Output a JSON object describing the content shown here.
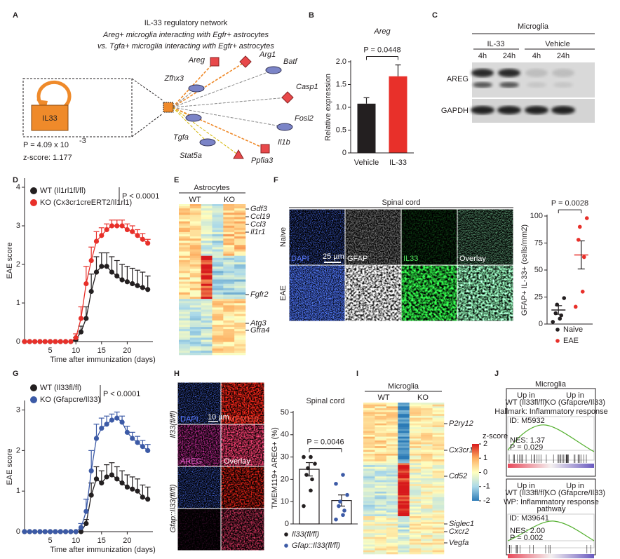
{
  "panel_labels": [
    "A",
    "B",
    "C",
    "D",
    "E",
    "F",
    "G",
    "H",
    "I",
    "J"
  ],
  "panel_a": {
    "title_lines": [
      "IL-33 regulatory network",
      "Areg+ microglia interacting with Egfr+ astrocytes",
      "vs. Tgfa+ microglia interacting with Egfr+ astrocytes"
    ],
    "hub": "IL33",
    "p_text": "P = 4.09 x 10",
    "p_exp": "-3",
    "z_score": "z-score: 1.177",
    "genes": [
      "Areg",
      "Arg1",
      "Batf",
      "Zfhx3",
      "Casp1",
      "Fosl2",
      "Tgfa",
      "Stat5a",
      "Il1b",
      "Ppfia3"
    ]
  },
  "panel_c": {
    "title": "Microglia",
    "groups": [
      "IL-33",
      "Vehicle"
    ],
    "timepoints": [
      "4h",
      "24h",
      "4h",
      "24h"
    ],
    "blots": [
      "AREG",
      "GAPDH"
    ]
  },
  "panel_e": {
    "title": "Astrocytes",
    "groups": [
      "WT",
      "KO"
    ],
    "genes": [
      "Gdf3",
      "Ccl19",
      "Ccl3",
      "Il1r1",
      "Fgfr2",
      "Atg3",
      "Gfra4"
    ]
  },
  "panel_f_images": {
    "title": "Spinal cord",
    "rows": [
      "Naive",
      "EAE"
    ],
    "channels": [
      "DAPI",
      "GFAP",
      "IL33",
      "Overlay"
    ],
    "scale_bar": "25 µm"
  },
  "panel_h_images": {
    "rows": [
      "Il33(fl/fl)",
      "Gfap::Il33(fl/fl)"
    ],
    "channels": [
      "DAPI",
      "TMEM119",
      "AREG",
      "Overlay"
    ],
    "scale_bar": "10 µm"
  },
  "panel_i": {
    "title": "Microglia",
    "groups": [
      "WT",
      "KO"
    ],
    "genes": [
      "P2ry12",
      "Cx3cr1",
      "Cd52",
      "Siglec1",
      "Cxcr2",
      "Vegfa"
    ],
    "colorbar_label": "z-score",
    "colorbar_ticks": [
      2,
      1,
      0,
      -1,
      -2
    ]
  },
  "panel_j": {
    "title": "Microglia",
    "up_in": "Up in",
    "groups": [
      "WT (Il33fl/fl)",
      "KO (Gfapcre/Il33)"
    ],
    "gene_sets": [
      {
        "name_lines": [
          "Hallmark: Inflammatory response"
        ],
        "id": "ID: M5932",
        "nes": "NES: 1.37",
        "p": "P = 0.029"
      },
      {
        "name_lines": [
          "WP: Inflammatory response",
          "pathway"
        ],
        "id": "ID: M39641",
        "nes": "NES: 2.00",
        "p": "P = 0.002"
      }
    ]
  },
  "chart_data": [
    {
      "type": "bar",
      "title": "Areg",
      "ylabel": "Relative expression",
      "categories": [
        "Vehicle",
        "IL-33"
      ],
      "values": [
        1.08,
        1.68
      ],
      "errors": [
        0.13,
        0.25
      ],
      "colors": [
        "#231f20",
        "#e8302a"
      ],
      "ylim": [
        0,
        2
      ],
      "yticks": [
        0,
        0.5,
        {
          "value": 1,
          "label": "1.0"
        },
        1.5,
        {
          "value": 2,
          "label": "2.0"
        }
      ],
      "annotation": "P = 0.0448"
    },
    {
      "type": "line",
      "xlabel": "Time after immunization (days)",
      "ylabel": "EAE score",
      "x": [
        0,
        1,
        2,
        3,
        4,
        5,
        6,
        7,
        8,
        9,
        10,
        11,
        12,
        13,
        14,
        15,
        16,
        17,
        18,
        19,
        20,
        21,
        22,
        23,
        24
      ],
      "xlim": [
        0,
        25
      ],
      "xticks": [
        5,
        10,
        15,
        20
      ],
      "ylim": [
        0,
        4.2
      ],
      "yticks": [
        0,
        1,
        2,
        3,
        4
      ],
      "annotation": "P < 0.0001",
      "series": [
        {
          "name": "WT (Il1rl1fl/fl)",
          "color": "#231f20",
          "values": [
            0,
            0,
            0,
            0,
            0,
            0,
            0,
            0,
            0,
            0,
            0.05,
            0.25,
            0.6,
            1.3,
            1.8,
            1.95,
            1.95,
            1.8,
            1.7,
            1.6,
            1.55,
            1.5,
            1.45,
            1.4,
            1.35
          ],
          "errors": [
            0,
            0,
            0,
            0,
            0,
            0,
            0,
            0,
            0,
            0,
            0.05,
            0.15,
            0.3,
            0.45,
            0.4,
            0.35,
            0.35,
            0.4,
            0.4,
            0.4,
            0.4,
            0.4,
            0.4,
            0.4,
            0.35
          ]
        },
        {
          "name": "KO (Cx3cr1creERT2/Il1rl1)",
          "color": "#e8302a",
          "values": [
            0,
            0,
            0,
            0,
            0,
            0,
            0,
            0,
            0,
            0,
            0.1,
            0.6,
            1.5,
            2.1,
            2.6,
            2.75,
            2.9,
            3.0,
            3.0,
            3.0,
            2.9,
            2.85,
            2.75,
            2.65,
            2.55
          ],
          "errors": [
            0,
            0,
            0,
            0,
            0,
            0,
            0,
            0,
            0,
            0,
            0.1,
            0.3,
            0.45,
            0.35,
            0.25,
            0.2,
            0.15,
            0.15,
            0.15,
            0.15,
            0.15,
            0.15,
            0.15,
            0.15,
            0.1
          ]
        }
      ]
    },
    {
      "type": "dotplot",
      "ylabel": "GFAP+ IL-33+ (cells/mm2)",
      "ylim": [
        0,
        100
      ],
      "yticks": [
        0,
        25,
        50,
        75,
        100
      ],
      "annotation": "P = 0.0028",
      "series": [
        {
          "name": "Naive",
          "color": "#231f20",
          "mean": 13,
          "error": 4,
          "points": [
            2,
            5,
            8,
            10,
            18,
            24
          ]
        },
        {
          "name": "EAE",
          "color": "#e8302a",
          "mean": 64,
          "error": 13,
          "points": [
            16,
            30,
            62,
            78,
            90,
            98
          ]
        }
      ]
    },
    {
      "type": "line",
      "xlabel": "Time after immunization (days)",
      "ylabel": "EAE score",
      "x": [
        0,
        1,
        2,
        3,
        4,
        5,
        6,
        7,
        8,
        9,
        10,
        11,
        12,
        13,
        14,
        15,
        16,
        17,
        18,
        19,
        20,
        21,
        22,
        23,
        24
      ],
      "xlim": [
        0,
        25
      ],
      "xticks": [
        5,
        10,
        15,
        20
      ],
      "ylim": [
        0,
        3.2
      ],
      "yticks": [
        0,
        1,
        2,
        3
      ],
      "annotation": "P < 0.0001",
      "series": [
        {
          "name": "WT (Il33fl/fl)",
          "color": "#231f20",
          "values": [
            0,
            0,
            0,
            0,
            0,
            0,
            0,
            0,
            0,
            0,
            0,
            0,
            0.2,
            0.9,
            1.3,
            1.2,
            1.35,
            1.4,
            1.3,
            1.2,
            1.1,
            1.05,
            1.0,
            0.85,
            0.8
          ],
          "errors": [
            0,
            0,
            0,
            0,
            0,
            0,
            0,
            0,
            0,
            0,
            0,
            0,
            0.1,
            0.3,
            0.3,
            0.3,
            0.3,
            0.3,
            0.3,
            0.3,
            0.3,
            0.3,
            0.3,
            0.3,
            0.3
          ]
        },
        {
          "name": "KO (Gfapcre/Il33)",
          "color": "#3c5aa6",
          "values": [
            0,
            0,
            0,
            0,
            0,
            0,
            0,
            0,
            0,
            0,
            0,
            0.1,
            0.5,
            1.5,
            2.3,
            2.55,
            2.65,
            2.75,
            2.8,
            2.7,
            2.45,
            2.3,
            2.2,
            2.1,
            2.0
          ],
          "errors": [
            0,
            0,
            0,
            0,
            0,
            0,
            0,
            0,
            0,
            0,
            0,
            0.1,
            0.3,
            0.5,
            0.35,
            0.25,
            0.2,
            0.15,
            0.15,
            0.15,
            0.15,
            0.15,
            0.15,
            0.15,
            0.15
          ]
        }
      ]
    },
    {
      "type": "bar_dot",
      "title": "Spinal cord",
      "ylabel": "TMEM119+ AREG+ (%)",
      "ylim": [
        0,
        50
      ],
      "yticks": [
        0,
        10,
        20,
        30,
        40,
        50
      ],
      "annotation": "P = 0.0046",
      "series": [
        {
          "name": "Il33(fl/fl)",
          "color": "#231f20",
          "mean": 24.5,
          "error": 3,
          "points": [
            8,
            15,
            20,
            22,
            25,
            27,
            30,
            30
          ]
        },
        {
          "name": "Gfap::Il33(fl/fl)",
          "color": "#3c5aa6",
          "mean": 10.5,
          "error": 2.5,
          "points": [
            2,
            4,
            6,
            8,
            10,
            13,
            18,
            22
          ]
        }
      ]
    }
  ]
}
